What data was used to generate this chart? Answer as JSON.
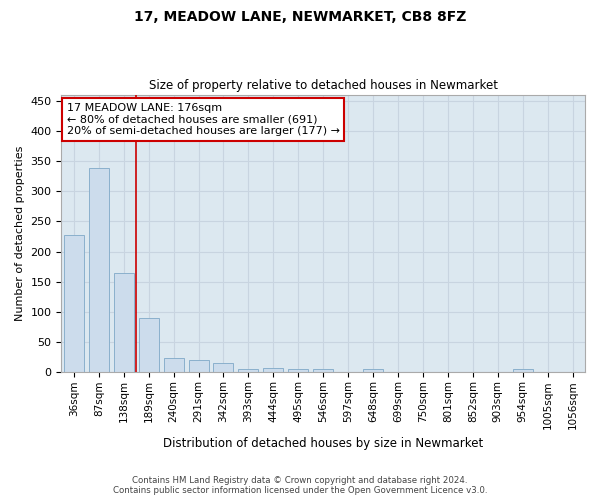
{
  "title1": "17, MEADOW LANE, NEWMARKET, CB8 8FZ",
  "title2": "Size of property relative to detached houses in Newmarket",
  "xlabel": "Distribution of detached houses by size in Newmarket",
  "ylabel": "Number of detached properties",
  "footer1": "Contains HM Land Registry data © Crown copyright and database right 2024.",
  "footer2": "Contains public sector information licensed under the Open Government Licence v3.0.",
  "categories": [
    "36sqm",
    "87sqm",
    "138sqm",
    "189sqm",
    "240sqm",
    "291sqm",
    "342sqm",
    "393sqm",
    "444sqm",
    "495sqm",
    "546sqm",
    "597sqm",
    "648sqm",
    "699sqm",
    "750sqm",
    "801sqm",
    "852sqm",
    "903sqm",
    "954sqm",
    "1005sqm",
    "1056sqm"
  ],
  "values": [
    228,
    338,
    165,
    90,
    24,
    20,
    15,
    6,
    8,
    6,
    6,
    0,
    5,
    0,
    0,
    0,
    0,
    0,
    5,
    0,
    0
  ],
  "bar_color": "#ccdcec",
  "bar_edge_color": "#8ab0cc",
  "grid_color": "#c8d4e0",
  "background_color": "#dce8f0",
  "vline_x": 2.5,
  "vline_color": "#cc0000",
  "annotation_text": "17 MEADOW LANE: 176sqm\n← 80% of detached houses are smaller (691)\n20% of semi-detached houses are larger (177) →",
  "annotation_box_facecolor": "#ffffff",
  "annotation_box_edge_color": "#cc0000",
  "ylim": [
    0,
    460
  ],
  "yticks": [
    0,
    50,
    100,
    150,
    200,
    250,
    300,
    350,
    400,
    450
  ]
}
